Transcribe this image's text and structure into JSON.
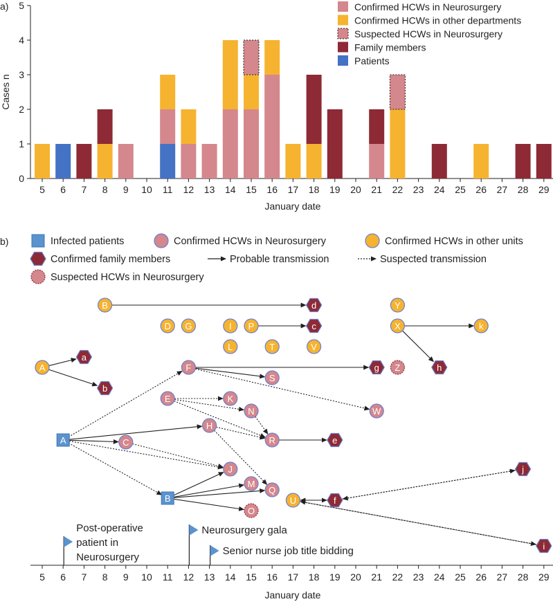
{
  "colors": {
    "confirmed_neuro": "#d4878c",
    "confirmed_other": "#f6b330",
    "suspected_neuro": "#d4878c",
    "family": "#8d2a35",
    "patients": "#4472c4",
    "patient_node": "#5b93cf",
    "node_stroke": "#6a7fd0",
    "axis": "#231f20"
  },
  "chart_data": [
    {
      "type": "bar",
      "stacked": true,
      "panel_label": "a)",
      "ylabel": "Cases n",
      "xlabel": "January date",
      "ylim": [
        0,
        5
      ],
      "yticks": [
        "0",
        "1",
        "2",
        "3",
        "4",
        "5"
      ],
      "legend_position": "top-right",
      "categories": [
        "5",
        "6",
        "7",
        "8",
        "9",
        "10",
        "11",
        "12",
        "13",
        "14",
        "15",
        "16",
        "17",
        "18",
        "19",
        "20",
        "21",
        "22",
        "23",
        "24",
        "25",
        "26",
        "27",
        "28",
        "29"
      ],
      "series": [
        {
          "key": "patients",
          "name": "Patients",
          "values": [
            0,
            1,
            0,
            0,
            0,
            0,
            1,
            0,
            0,
            0,
            0,
            0,
            0,
            0,
            0,
            0,
            0,
            0,
            0,
            0,
            0,
            0,
            0,
            0,
            0
          ]
        },
        {
          "key": "confirmed_neuro",
          "name": "Confirmed HCWs in Neurosurgery",
          "values": [
            0,
            0,
            0,
            0,
            1,
            0,
            1,
            1,
            1,
            2,
            2,
            3,
            0,
            0,
            0,
            0,
            1,
            0,
            0,
            0,
            0,
            0,
            0,
            0,
            0
          ]
        },
        {
          "key": "confirmed_other",
          "name": "Confirmed HCWs in other departments",
          "values": [
            1,
            0,
            0,
            1,
            0,
            0,
            1,
            1,
            0,
            2,
            1,
            1,
            1,
            1,
            0,
            0,
            0,
            2,
            0,
            0,
            0,
            1,
            0,
            0,
            0
          ]
        },
        {
          "key": "suspected_neuro",
          "name": "Suspected HCWs in Neurosurgery",
          "values": [
            0,
            0,
            0,
            0,
            0,
            0,
            0,
            0,
            0,
            0,
            1,
            0,
            0,
            0,
            0,
            0,
            0,
            1,
            0,
            0,
            0,
            0,
            0,
            0,
            0
          ]
        },
        {
          "key": "family",
          "name": "Family members",
          "values": [
            0,
            0,
            1,
            1,
            0,
            0,
            0,
            0,
            0,
            0,
            0,
            0,
            0,
            2,
            2,
            0,
            1,
            0,
            0,
            1,
            0,
            0,
            0,
            1,
            1
          ]
        }
      ],
      "legend_order": [
        "confirmed_neuro",
        "confirmed_other",
        "suspected_neuro",
        "family",
        "patients"
      ]
    },
    {
      "type": "network",
      "panel_label": "b)",
      "xlabel": "January date",
      "x_ticks": [
        "5",
        "6",
        "7",
        "8",
        "9",
        "10",
        "11",
        "12",
        "13",
        "14",
        "15",
        "16",
        "17",
        "18",
        "19",
        "20",
        "21",
        "22",
        "23",
        "24",
        "25",
        "26",
        "27",
        "28",
        "29"
      ],
      "legend": [
        {
          "shape": "square",
          "label": "Infected patients"
        },
        {
          "shape": "circle-neuro",
          "label": "Confirmed HCWs in Neurosurgery"
        },
        {
          "shape": "circle-other",
          "label": "Confirmed HCWs in other units"
        },
        {
          "shape": "hexagon",
          "label": "Confirmed family members"
        },
        {
          "shape": "arrow-solid",
          "label": "Probable transmission"
        },
        {
          "shape": "arrow-dotted",
          "label": "Suspected transmission"
        },
        {
          "shape": "circle-suspected",
          "label": "Suspected HCWs in Neurosurgery"
        }
      ],
      "nodes": [
        {
          "id": "A",
          "type": "other",
          "date": 5,
          "lane": 2
        },
        {
          "id": "a",
          "type": "family",
          "date": 7,
          "lane": 1.5
        },
        {
          "id": "b",
          "type": "family",
          "date": 8,
          "lane": 3
        },
        {
          "id": "B",
          "type": "other",
          "date": 8,
          "lane": -1
        },
        {
          "id": "d",
          "type": "family",
          "date": 18,
          "lane": -1
        },
        {
          "id": "D",
          "type": "other",
          "date": 11,
          "lane": 0
        },
        {
          "id": "G",
          "type": "other",
          "date": 12,
          "lane": 0
        },
        {
          "id": "I",
          "type": "other",
          "date": 14,
          "lane": 0
        },
        {
          "id": "P",
          "type": "other",
          "date": 15,
          "lane": 0
        },
        {
          "id": "c",
          "type": "family",
          "date": 18,
          "lane": 0
        },
        {
          "id": "L",
          "type": "other",
          "date": 14,
          "lane": 1
        },
        {
          "id": "T",
          "type": "other",
          "date": 16,
          "lane": 1
        },
        {
          "id": "V",
          "type": "other",
          "date": 18,
          "lane": 1
        },
        {
          "id": "Y",
          "type": "other",
          "date": 22,
          "lane": -1
        },
        {
          "id": "X",
          "type": "other",
          "date": 22,
          "lane": 0
        },
        {
          "id": "k",
          "type": "other",
          "date": 26,
          "lane": 0
        },
        {
          "id": "Z",
          "type": "suspected",
          "date": 22,
          "lane": 2
        },
        {
          "id": "h",
          "type": "family",
          "date": 24,
          "lane": 2
        },
        {
          "id": "F",
          "type": "neuro",
          "date": 12,
          "lane": 2
        },
        {
          "id": "g",
          "type": "family",
          "date": 21,
          "lane": 2
        },
        {
          "id": "S",
          "type": "neuro",
          "date": 16,
          "lane": 2.5
        },
        {
          "id": "E",
          "type": "neuro",
          "date": 11,
          "lane": 3.5
        },
        {
          "id": "K",
          "type": "neuro",
          "date": 14,
          "lane": 3.5
        },
        {
          "id": "N",
          "type": "neuro",
          "date": 15,
          "lane": 4.1
        },
        {
          "id": "W",
          "type": "neuro",
          "date": 21,
          "lane": 4.1
        },
        {
          "id": "H",
          "type": "neuro",
          "date": 13,
          "lane": 4.8
        },
        {
          "id": "A2",
          "label": "A",
          "type": "patient",
          "date": 6,
          "lane": 5.5
        },
        {
          "id": "C",
          "type": "neuro",
          "date": 9,
          "lane": 5.6
        },
        {
          "id": "R",
          "type": "neuro",
          "date": 16,
          "lane": 5.5
        },
        {
          "id": "e",
          "type": "family",
          "date": 19,
          "lane": 5.5
        },
        {
          "id": "J",
          "type": "neuro",
          "date": 14,
          "lane": 6.9
        },
        {
          "id": "j",
          "type": "family",
          "date": 28,
          "lane": 6.9
        },
        {
          "id": "M",
          "type": "neuro",
          "date": 15,
          "lane": 7.6
        },
        {
          "id": "Q",
          "type": "neuro",
          "date": 16,
          "lane": 7.9
        },
        {
          "id": "B2",
          "label": "B",
          "type": "patient",
          "date": 11,
          "lane": 8.3
        },
        {
          "id": "U",
          "type": "other",
          "date": 17,
          "lane": 8.4
        },
        {
          "id": "f",
          "type": "family",
          "date": 19,
          "lane": 8.4
        },
        {
          "id": "O",
          "type": "suspected",
          "date": 15,
          "lane": 8.9
        },
        {
          "id": "i",
          "type": "family",
          "date": 29,
          "lane": 10.6
        }
      ],
      "edges": [
        {
          "from": "A",
          "to": "a",
          "style": "solid"
        },
        {
          "from": "A",
          "to": "b",
          "style": "solid"
        },
        {
          "from": "B",
          "to": "d",
          "style": "solid"
        },
        {
          "from": "P",
          "to": "c",
          "style": "solid"
        },
        {
          "from": "X",
          "to": "k",
          "style": "solid"
        },
        {
          "from": "X",
          "to": "h",
          "style": "solid"
        },
        {
          "from": "F",
          "to": "g",
          "style": "solid"
        },
        {
          "from": "F",
          "to": "S",
          "style": "solid"
        },
        {
          "from": "F",
          "to": "W",
          "style": "dotted"
        },
        {
          "from": "E",
          "to": "K",
          "style": "dotted"
        },
        {
          "from": "E",
          "to": "N",
          "style": "dotted"
        },
        {
          "from": "E",
          "to": "R",
          "style": "dotted"
        },
        {
          "from": "H",
          "to": "R",
          "style": "dotted"
        },
        {
          "from": "N",
          "to": "R",
          "style": "dotted"
        },
        {
          "from": "R",
          "to": "e",
          "style": "solid"
        },
        {
          "from": "H",
          "to": "Q",
          "style": "dotted"
        },
        {
          "from": "A2",
          "to": "F",
          "style": "dotted"
        },
        {
          "from": "A2",
          "to": "C",
          "style": "solid"
        },
        {
          "from": "A2",
          "to": "H",
          "style": "solid"
        },
        {
          "from": "A2",
          "to": "J",
          "style": "dotted"
        },
        {
          "from": "A2",
          "to": "B2",
          "style": "dotted"
        },
        {
          "from": "C",
          "to": "J",
          "style": "dotted"
        },
        {
          "from": "B2",
          "to": "J",
          "style": "solid"
        },
        {
          "from": "B2",
          "to": "M",
          "style": "solid"
        },
        {
          "from": "B2",
          "to": "Q",
          "style": "solid"
        },
        {
          "from": "B2",
          "to": "O",
          "style": "solid"
        },
        {
          "from": "U",
          "to": "f",
          "style": "solid"
        },
        {
          "from": "f",
          "to": "U",
          "style": "dotted"
        },
        {
          "from": "f",
          "to": "j",
          "style": "dotted"
        },
        {
          "from": "j",
          "to": "f",
          "style": "dotted"
        },
        {
          "from": "U",
          "to": "i",
          "style": "dotted"
        },
        {
          "from": "i",
          "to": "U",
          "style": "dotted"
        }
      ],
      "events": [
        {
          "date": 6,
          "label_lines": [
            "Post-operative",
            "patient in",
            "Neurosurgery"
          ]
        },
        {
          "date": 12,
          "label_lines": [
            "Neurosurgery gala"
          ]
        },
        {
          "date": 13,
          "label_lines": [
            "Senior nurse job title bidding"
          ]
        }
      ]
    }
  ]
}
